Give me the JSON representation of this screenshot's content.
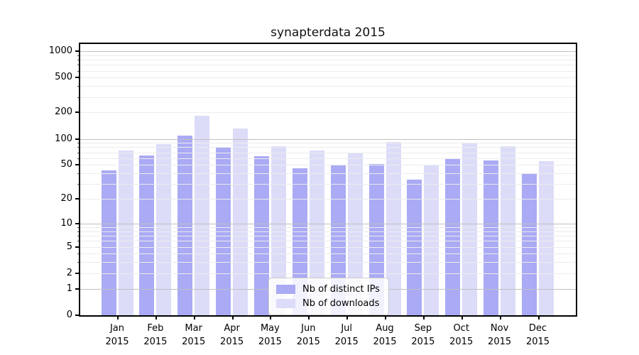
{
  "chart_data": {
    "type": "bar",
    "title": "synapterdata 2015",
    "months": [
      "Jan",
      "Feb",
      "Mar",
      "Apr",
      "May",
      "Jun",
      "Jul",
      "Aug",
      "Sep",
      "Oct",
      "Nov",
      "Dec"
    ],
    "year_label": "2015",
    "series": [
      {
        "name": "Nb of distinct IPs",
        "color": "#aaaaf5",
        "values": [
          43,
          64,
          108,
          80,
          63,
          46,
          50,
          51,
          34,
          59,
          56,
          39
        ]
      },
      {
        "name": "Nb of downloads",
        "color": "#dcdcf9",
        "values": [
          74,
          87,
          185,
          131,
          82,
          74,
          68,
          92,
          50,
          89,
          82,
          55
        ]
      }
    ],
    "ytick_labels": [
      "0",
      "1",
      "2",
      "5",
      "10",
      "20",
      "50",
      "100",
      "200",
      "500",
      "1000"
    ],
    "ytick_values": [
      0,
      1,
      2,
      5,
      10,
      20,
      50,
      100,
      200,
      500,
      1000
    ],
    "yscale": "log1p",
    "ylim": [
      0,
      1200
    ],
    "grid": {
      "major_color": "#c0c0c0",
      "minor_color": "#ececec",
      "major_at": [
        1,
        10,
        100,
        1000
      ]
    },
    "legend": {
      "position": "lower-center"
    },
    "frame_color": "#000000",
    "background_color": "#ffffff"
  }
}
